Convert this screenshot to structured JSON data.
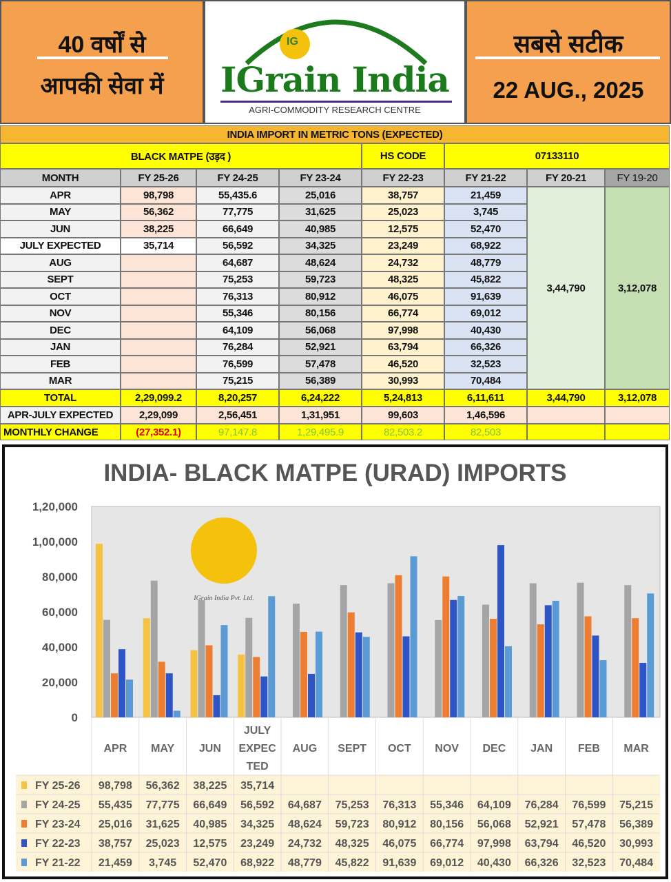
{
  "header": {
    "left_line1": "40 वर्षों से",
    "left_line2": "आपकी सेवा में",
    "brand": "IGrain India",
    "brand_sub": "AGRI-COMMODITY RESEARCH CENTRE",
    "logo_mark": "IG",
    "right_line1": "सबसे सटीक",
    "date": "22 AUG., 2025"
  },
  "table": {
    "title": "INDIA IMPORT IN METRIC TONS (EXPECTED)",
    "commodity": "BLACK MATPE (उड़द )",
    "hs_label": "HS CODE",
    "hs_code": "07133110",
    "columns": [
      "MONTH",
      "FY 25-26",
      "FY 24-25",
      "FY 23-24",
      "FY 22-23",
      "FY 21-22",
      "FY 20-21",
      "FY 19-20"
    ],
    "rows": [
      [
        "APR",
        "98,798",
        "55,435.6",
        "25,016",
        "38,757",
        "21,459"
      ],
      [
        "MAY",
        "56,362",
        "77,775",
        "31,625",
        "25,023",
        "3,745"
      ],
      [
        "JUN",
        "38,225",
        "66,649",
        "40,985",
        "12,575",
        "52,470"
      ],
      [
        "JULY EXPECTED",
        "35,714",
        "56,592",
        "34,325",
        "23,249",
        "68,922"
      ],
      [
        "AUG",
        "",
        "64,687",
        "48,624",
        "24,732",
        "48,779"
      ],
      [
        "SEPT",
        "",
        "75,253",
        "59,723",
        "48,325",
        "45,822"
      ],
      [
        "OCT",
        "",
        "76,313",
        "80,912",
        "46,075",
        "91,639"
      ],
      [
        "NOV",
        "",
        "55,346",
        "80,156",
        "66,774",
        "69,012"
      ],
      [
        "DEC",
        "",
        "64,109",
        "56,068",
        "97,998",
        "40,430"
      ],
      [
        "JAN",
        "",
        "76,284",
        "52,921",
        "63,794",
        "66,326"
      ],
      [
        "FEB",
        "",
        "76,599",
        "57,478",
        "46,520",
        "32,523"
      ],
      [
        "MAR",
        "",
        "75,215",
        "56,389",
        "30,993",
        "70,484"
      ]
    ],
    "fy2021_annual": "3,44,790",
    "fy1920_annual": "3,12,078",
    "total": [
      "TOTAL",
      "2,29,099.2",
      "8,20,257",
      "6,24,222",
      "5,24,813",
      "6,11,611",
      "3,44,790",
      "3,12,078"
    ],
    "apr_july": [
      "APR-JULY EXPECTED",
      "2,29,099",
      "2,56,451",
      "1,31,951",
      "99,603",
      "1,46,596",
      "",
      ""
    ],
    "monthly_change": [
      "MONTHLY CHANGE",
      "(27,352.1)",
      "97,147.8",
      "1,29,495.9",
      "82,503.2",
      "82,503",
      "",
      ""
    ]
  },
  "chart_data": {
    "type": "bar",
    "title": "INDIA- BLACK MATPE (URAD) IMPORTS",
    "categories": [
      "APR",
      "MAY",
      "JUN",
      "JULY EXPEC TED",
      "AUG",
      "SEPT",
      "OCT",
      "NOV",
      "DEC",
      "JAN",
      "FEB",
      "MAR"
    ],
    "ylim": [
      0,
      120000
    ],
    "yticks": [
      "0",
      "20,000",
      "40,000",
      "60,000",
      "80,000",
      "1,00,000",
      "1,20,000"
    ],
    "grid": false,
    "legend": "data-table-bottom",
    "watermark": "IGrain India Pvt. Ltd.",
    "series": [
      {
        "name": "FY 25-26",
        "color": "#f5c242",
        "values": [
          98798,
          56362,
          38225,
          35714,
          null,
          null,
          null,
          null,
          null,
          null,
          null,
          null
        ],
        "labels": [
          "98,798",
          "56,362",
          "38,225",
          "35,714",
          "",
          "",
          "",
          "",
          "",
          "",
          "",
          ""
        ]
      },
      {
        "name": "FY 24-25",
        "color": "#a5a5a5",
        "values": [
          55435,
          77775,
          66649,
          56592,
          64687,
          75253,
          76313,
          55346,
          64109,
          76284,
          76599,
          75215
        ],
        "labels": [
          "55,435",
          "77,775",
          "66,649",
          "56,592",
          "64,687",
          "75,253",
          "76,313",
          "55,346",
          "64,109",
          "76,284",
          "76,599",
          "75,215"
        ]
      },
      {
        "name": "FY 23-24",
        "color": "#ed7d31",
        "values": [
          25016,
          31625,
          40985,
          34325,
          48624,
          59723,
          80912,
          80156,
          56068,
          52921,
          57478,
          56389
        ],
        "labels": [
          "25,016",
          "31,625",
          "40,985",
          "34,325",
          "48,624",
          "59,723",
          "80,912",
          "80,156",
          "56,068",
          "52,921",
          "57,478",
          "56,389"
        ]
      },
      {
        "name": "FY 22-23",
        "color": "#2e55c6",
        "values": [
          38757,
          25023,
          12575,
          23249,
          24732,
          48325,
          46075,
          66774,
          97998,
          63794,
          46520,
          30993
        ],
        "labels": [
          "38,757",
          "25,023",
          "12,575",
          "23,249",
          "24,732",
          "48,325",
          "46,075",
          "66,774",
          "97,998",
          "63,794",
          "46,520",
          "30,993"
        ]
      },
      {
        "name": "FY 21-22",
        "color": "#5b9bd5",
        "values": [
          21459,
          3745,
          52470,
          68922,
          48779,
          45822,
          91639,
          69012,
          40430,
          66326,
          32523,
          70484
        ],
        "labels": [
          "21,459",
          "3,745",
          "52,470",
          "68,922",
          "48,779",
          "45,822",
          "91,639",
          "69,012",
          "40,430",
          "66,326",
          "32,523",
          "70,484"
        ]
      }
    ]
  }
}
